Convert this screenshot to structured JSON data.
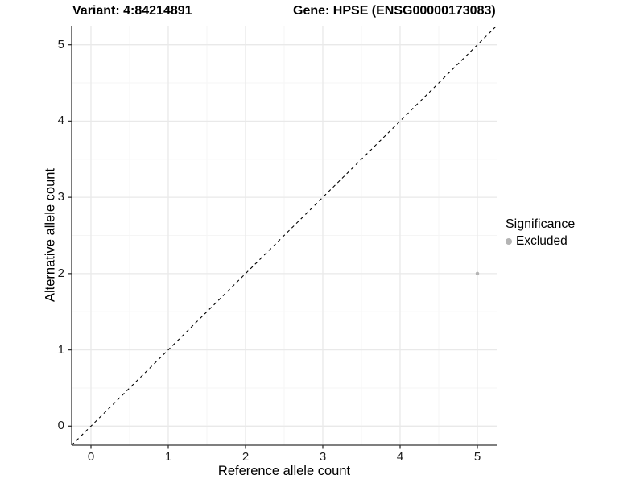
{
  "chart_data": {
    "type": "scatter",
    "titles": {
      "left": "Variant: 4:84214891",
      "right": "Gene: HPSE (ENSG00000173083)"
    },
    "xlabel": "Reference allele count",
    "ylabel": "Alternative allele count",
    "xlim": [
      -0.25,
      5.25
    ],
    "ylim": [
      -0.25,
      5.25
    ],
    "xticks": [
      0,
      1,
      2,
      3,
      4,
      5
    ],
    "yticks": [
      0,
      1,
      2,
      3,
      4,
      5
    ],
    "minor_xticks": [
      0.5,
      1.5,
      2.5,
      3.5,
      4.5
    ],
    "minor_yticks": [
      0.5,
      1.5,
      2.5,
      3.5,
      4.5
    ],
    "grid": true,
    "identity_line": {
      "style": "dashed",
      "color": "#000000"
    },
    "series": [
      {
        "name": "Excluded",
        "color": "#b4b4b4",
        "points": [
          [
            5,
            2
          ]
        ]
      }
    ],
    "legend": {
      "position": "right",
      "title": "Significance",
      "items": [
        {
          "label": "Excluded",
          "color": "#b4b4b4"
        }
      ]
    },
    "colors": {
      "background": "#ffffff",
      "major_grid": "#e9e9e9",
      "minor_grid": "#f5f5f5",
      "axis": "#333333",
      "tick_text": "#1a1a1a",
      "point": "#b4b4b4"
    }
  }
}
